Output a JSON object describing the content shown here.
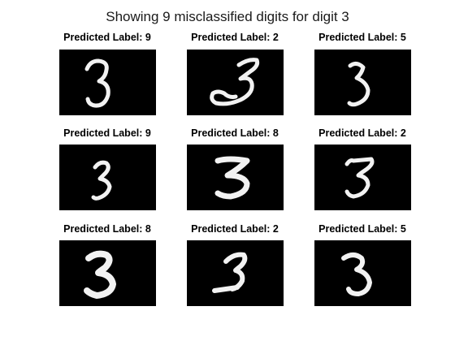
{
  "figure": {
    "title": "Showing 9 misclassified digits for digit 3",
    "panels": [
      {
        "title": "Predicted Label: 9",
        "glyph": "digit-3-upright-serif-icon"
      },
      {
        "title": "Predicted Label: 2",
        "glyph": "digit-3-looped-base-icon"
      },
      {
        "title": "Predicted Label: 5",
        "glyph": "digit-3-open-top-icon"
      },
      {
        "title": "Predicted Label: 9",
        "glyph": "digit-3-slanted-icon"
      },
      {
        "title": "Predicted Label: 8",
        "glyph": "digit-3-bold-icon"
      },
      {
        "title": "Predicted Label: 2",
        "glyph": "digit-3-flat-top-icon"
      },
      {
        "title": "Predicted Label: 8",
        "glyph": "digit-3-thick-icon"
      },
      {
        "title": "Predicted Label: 2",
        "glyph": "digit-3-underlined-icon"
      },
      {
        "title": "Predicted Label: 5",
        "glyph": "digit-3-round-icon"
      }
    ],
    "colors": {
      "image_background": "#000000",
      "stroke": "#f2f2f2"
    }
  }
}
